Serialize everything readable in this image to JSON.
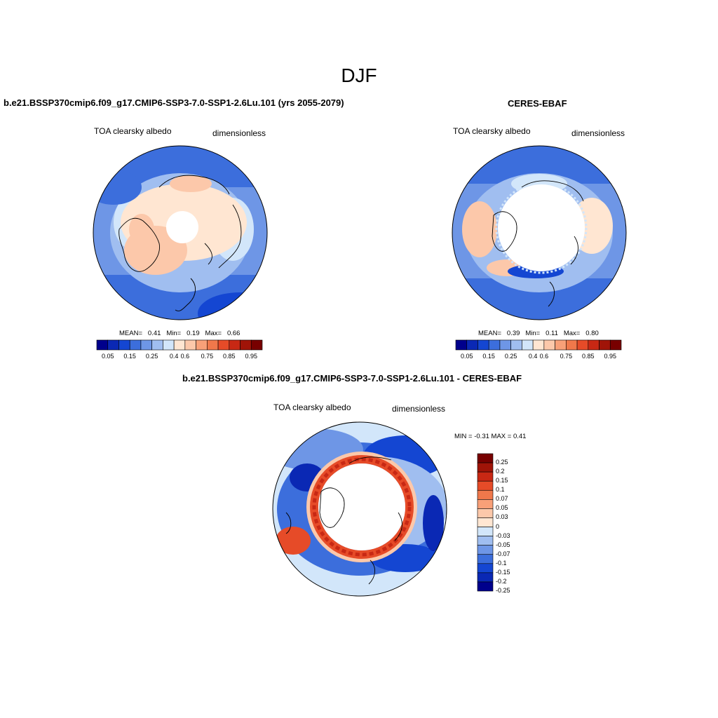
{
  "page": {
    "title": "DJF"
  },
  "panels": [
    {
      "title": "b.e21.BSSP370cmip6.f09_g17.CMIP6-SSP3-7.0-SSP1-2.6Lu.101 (yrs 2055-2079)",
      "variable": "TOA clearsky albedo",
      "units": "dimensionless",
      "stats": {
        "mean_label": "MEAN=",
        "mean": "0.41",
        "min_label": "Min=",
        "min": "0.19",
        "max_label": "Max=",
        "max": "0.66"
      }
    },
    {
      "title": "CERES-EBAF",
      "variable": "TOA clearsky albedo",
      "units": "dimensionless",
      "stats": {
        "mean_label": "MEAN=",
        "mean": "0.39",
        "min_label": "Min=",
        "min": "0.11",
        "max_label": "Max=",
        "max": "0.80"
      }
    },
    {
      "title": "b.e21.BSSP370cmip6.f09_g17.CMIP6-SSP3-7.0-SSP1-2.6Lu.101 - CERES-EBAF",
      "variable": "TOA clearsky albedo",
      "units": "dimensionless",
      "minmax": "MIN =  -0.31 MAX =   0.41"
    }
  ],
  "abs_colorbar": {
    "colors": [
      "#00008c",
      "#0a28b4",
      "#1446d2",
      "#3c6edc",
      "#6e96e6",
      "#a0bef0",
      "#d2e6fa",
      "#ffe6d2",
      "#fcc8aa",
      "#f8a078",
      "#f0784b",
      "#e64b28",
      "#c82814",
      "#a01408",
      "#780000"
    ],
    "ticks": [
      "0.05",
      "0.15",
      "0.25",
      "0.4",
      "0.6",
      "0.75",
      "0.85",
      "0.95"
    ]
  },
  "diff_colorbar": {
    "colors": [
      "#780000",
      "#a01408",
      "#c82814",
      "#e64b28",
      "#f0784b",
      "#f8a078",
      "#fcc8aa",
      "#ffe6d2",
      "#d2e6fa",
      "#a0bef0",
      "#6e96e6",
      "#3c6edc",
      "#1446d2",
      "#0a28b4",
      "#00008c"
    ],
    "ticks": [
      "0.25",
      "0.2",
      "0.15",
      "0.1",
      "0.07",
      "0.05",
      "0.03",
      "0",
      "-0.03",
      "-0.05",
      "-0.07",
      "-0.1",
      "-0.15",
      "-0.2",
      "-0.25"
    ]
  }
}
